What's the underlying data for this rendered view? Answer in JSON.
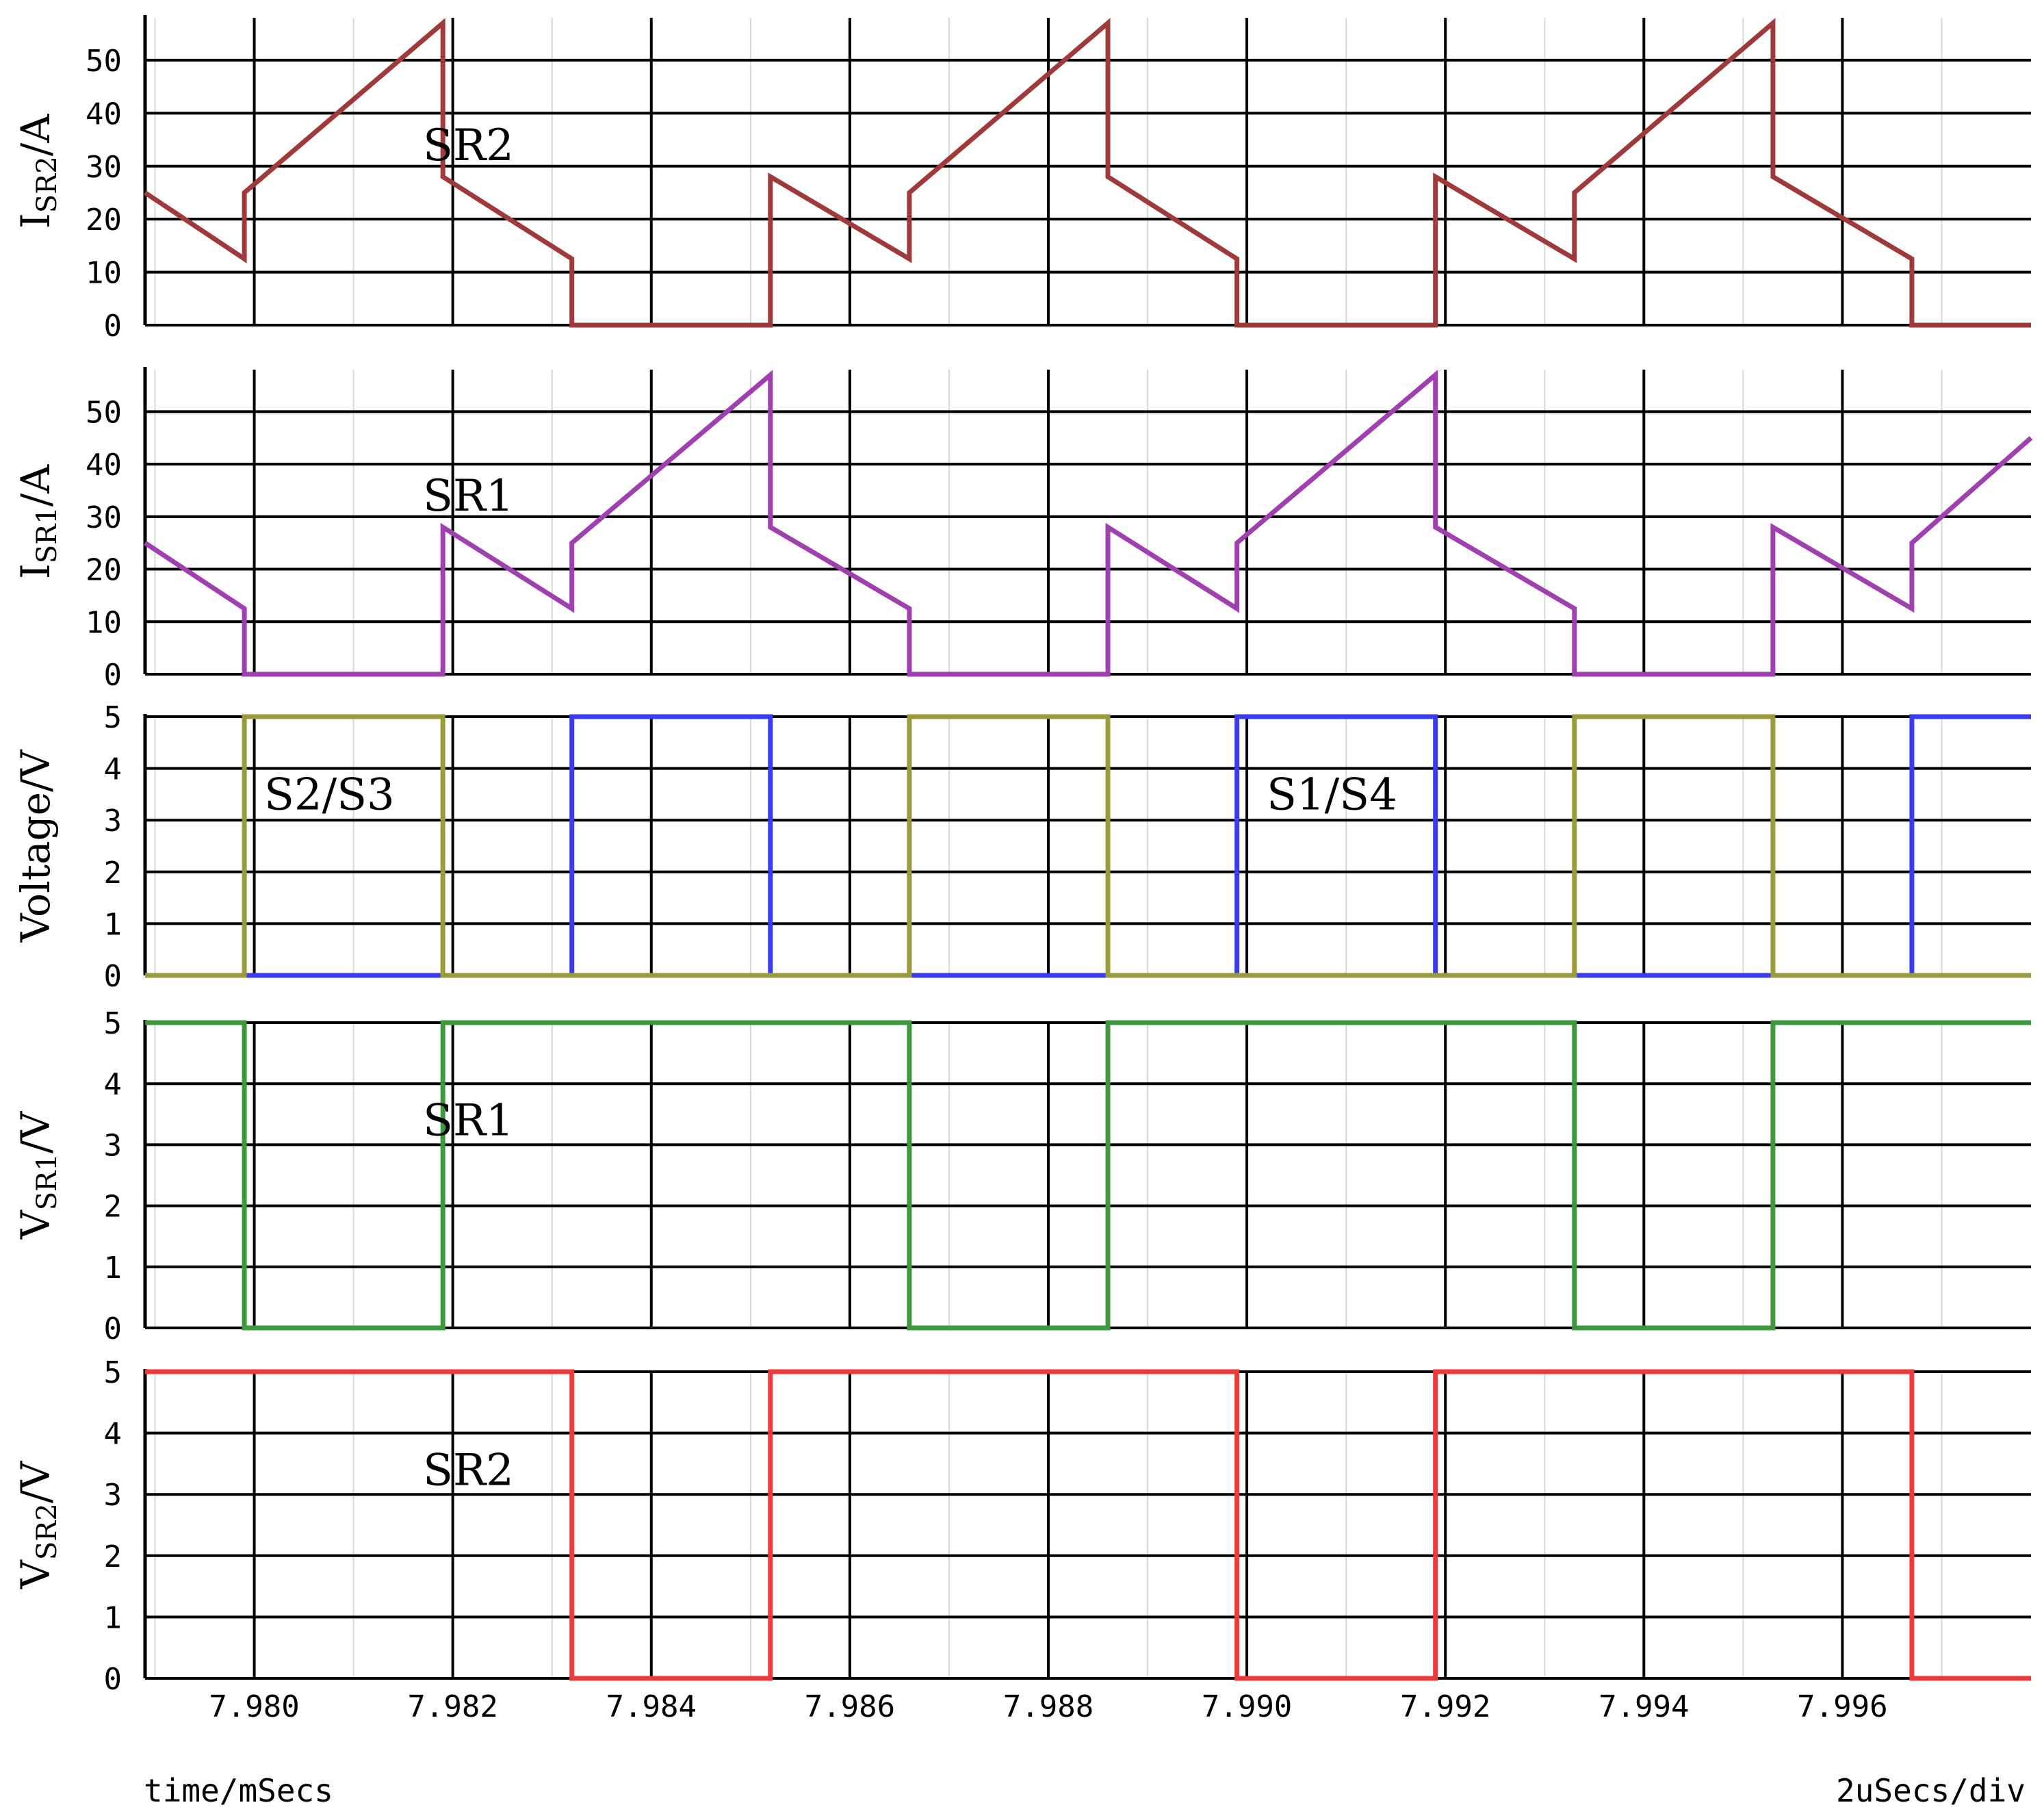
{
  "chart_data": [
    {
      "type": "line",
      "ylabel": {
        "main": "I",
        "sub": "SR2",
        "rest": "/A"
      },
      "ylim": [
        0,
        58
      ],
      "yticks": [
        0,
        10,
        20,
        30,
        40,
        50
      ],
      "annotation": {
        "text": "SR2",
        "x": 7.9817,
        "y": 34
      },
      "series": [
        {
          "color": "#a0393a",
          "points": [
            [
              7.9789,
              25
            ],
            [
              7.9799,
              12.5
            ],
            [
              7.9799,
              25
            ],
            [
              7.9819,
              57
            ],
            [
              7.9819,
              28
            ],
            [
              7.9832,
              12.5
            ],
            [
              7.9832,
              0
            ],
            [
              7.9852,
              0
            ],
            [
              7.9852,
              28
            ],
            [
              7.9866,
              12.5
            ],
            [
              7.9866,
              25
            ],
            [
              7.9886,
              57
            ],
            [
              7.9886,
              28
            ],
            [
              7.9899,
              12.5
            ],
            [
              7.9899,
              0
            ],
            [
              7.9919,
              0
            ],
            [
              7.9919,
              28
            ],
            [
              7.9933,
              12.5
            ],
            [
              7.9933,
              25
            ],
            [
              7.9953,
              57
            ],
            [
              7.9953,
              28
            ],
            [
              7.9967,
              12.5
            ],
            [
              7.9967,
              0
            ],
            [
              7.9979,
              0
            ]
          ]
        }
      ]
    },
    {
      "type": "line",
      "ylabel": {
        "main": "I",
        "sub": "SR1",
        "rest": "/A"
      },
      "ylim": [
        0,
        58
      ],
      "yticks": [
        0,
        10,
        20,
        30,
        40,
        50
      ],
      "annotation": {
        "text": "SR1",
        "x": 7.9817,
        "y": 34
      },
      "series": [
        {
          "color": "#a040b0",
          "points": [
            [
              7.9789,
              25
            ],
            [
              7.9799,
              12.5
            ],
            [
              7.9799,
              0
            ],
            [
              7.9819,
              0
            ],
            [
              7.9819,
              28
            ],
            [
              7.9832,
              12.5
            ],
            [
              7.9832,
              25
            ],
            [
              7.9852,
              57
            ],
            [
              7.9852,
              28
            ],
            [
              7.9866,
              12.5
            ],
            [
              7.9866,
              0
            ],
            [
              7.9886,
              0
            ],
            [
              7.9886,
              28
            ],
            [
              7.9899,
              12.5
            ],
            [
              7.9899,
              25
            ],
            [
              7.9919,
              57
            ],
            [
              7.9919,
              28
            ],
            [
              7.9933,
              12.5
            ],
            [
              7.9933,
              0
            ],
            [
              7.9953,
              0
            ],
            [
              7.9953,
              28
            ],
            [
              7.9967,
              12.5
            ],
            [
              7.9967,
              25
            ],
            [
              7.9979,
              45
            ]
          ]
        }
      ]
    },
    {
      "type": "line",
      "ylabel": {
        "main": "Voltage/V",
        "sub": "",
        "rest": ""
      },
      "ylim": [
        0,
        5
      ],
      "yticks": [
        0,
        1,
        2,
        3,
        4,
        5
      ],
      "annotations": [
        {
          "text": "S2/S3",
          "x": 7.9801,
          "y": 3.5
        },
        {
          "text": "S1/S4",
          "x": 7.9902,
          "y": 3.5
        }
      ],
      "series": [
        {
          "color": "#3a3aee",
          "points": [
            [
              7.9789,
              0
            ],
            [
              7.9832,
              0
            ],
            [
              7.9832,
              5
            ],
            [
              7.9852,
              5
            ],
            [
              7.9852,
              0
            ],
            [
              7.9899,
              0
            ],
            [
              7.9899,
              5
            ],
            [
              7.9919,
              5
            ],
            [
              7.9919,
              0
            ],
            [
              7.9967,
              0
            ],
            [
              7.9967,
              5
            ],
            [
              7.9979,
              5
            ]
          ]
        },
        {
          "color": "#9b9b3b",
          "points": [
            [
              7.9789,
              0
            ],
            [
              7.9799,
              0
            ],
            [
              7.9799,
              5
            ],
            [
              7.9819,
              5
            ],
            [
              7.9819,
              0
            ],
            [
              7.9866,
              0
            ],
            [
              7.9866,
              5
            ],
            [
              7.9886,
              5
            ],
            [
              7.9886,
              0
            ],
            [
              7.9933,
              0
            ],
            [
              7.9933,
              5
            ],
            [
              7.9953,
              5
            ],
            [
              7.9953,
              0
            ],
            [
              7.9979,
              0
            ]
          ]
        }
      ]
    },
    {
      "type": "line",
      "ylabel": {
        "main": "V",
        "sub": "SR1",
        "rest": "/V"
      },
      "ylim": [
        0,
        5
      ],
      "yticks": [
        0,
        1,
        2,
        3,
        4,
        5
      ],
      "annotation": {
        "text": "SR1",
        "x": 7.9817,
        "y": 3.4
      },
      "series": [
        {
          "color": "#3c9a3c",
          "points": [
            [
              7.9789,
              5
            ],
            [
              7.9799,
              5
            ],
            [
              7.9799,
              0
            ],
            [
              7.9819,
              0
            ],
            [
              7.9819,
              5
            ],
            [
              7.9866,
              5
            ],
            [
              7.9866,
              0
            ],
            [
              7.9886,
              0
            ],
            [
              7.9886,
              5
            ],
            [
              7.9933,
              5
            ],
            [
              7.9933,
              0
            ],
            [
              7.9953,
              0
            ],
            [
              7.9953,
              5
            ],
            [
              7.9979,
              5
            ]
          ]
        }
      ]
    },
    {
      "type": "line",
      "ylabel": {
        "main": "V",
        "sub": "SR2",
        "rest": "/V"
      },
      "ylim": [
        0,
        5
      ],
      "yticks": [
        0,
        1,
        2,
        3,
        4,
        5
      ],
      "annotation": {
        "text": "SR2",
        "x": 7.9817,
        "y": 3.4
      },
      "xticks": [
        "7.980",
        "7.982",
        "7.984",
        "7.986",
        "7.988",
        "7.990",
        "7.992",
        "7.994",
        "7.996"
      ],
      "xtick_values": [
        7.98,
        7.982,
        7.984,
        7.986,
        7.988,
        7.99,
        7.992,
        7.994,
        7.996
      ],
      "series": [
        {
          "color": "#ee3a3a",
          "points": [
            [
              7.9789,
              5
            ],
            [
              7.9832,
              5
            ],
            [
              7.9832,
              0
            ],
            [
              7.9852,
              0
            ],
            [
              7.9852,
              5
            ],
            [
              7.9899,
              5
            ],
            [
              7.9899,
              0
            ],
            [
              7.9919,
              0
            ],
            [
              7.9919,
              5
            ],
            [
              7.9967,
              5
            ],
            [
              7.9967,
              0
            ],
            [
              7.9979,
              0
            ]
          ]
        }
      ]
    }
  ],
  "xlim": [
    7.9789,
    7.9979
  ],
  "grid": true,
  "footer": {
    "left": "time/mSecs",
    "right": "2uSecs/div"
  }
}
